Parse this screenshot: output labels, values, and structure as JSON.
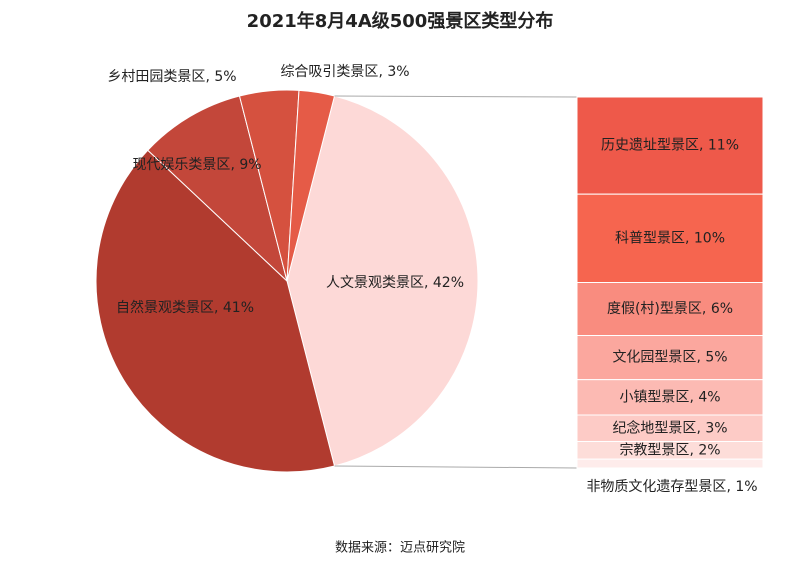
{
  "chart_data": {
    "type": "pie-of-bar",
    "title": "2021年8月4A级500强景区类型分布",
    "source": "数据来源：迈点研究院",
    "categories": [
      "人文景观类景区",
      "自然景观类景区",
      "现代娱乐类景区",
      "乡村田园类景区",
      "综合吸引类景区"
    ],
    "values": [
      42,
      41,
      9,
      5,
      3
    ],
    "value_labels": [
      "42%",
      "41%",
      "9%",
      "5%",
      "3%"
    ],
    "colors": [
      "#fdd9d7",
      "#b13b2f",
      "#c3473a",
      "#d5513f",
      "#e55b47"
    ],
    "breakdown": {
      "categories": [
        "历史遗址型景区",
        "科普型景区",
        "度假(村)型景区",
        "文化园型景区",
        "小镇型景区",
        "纪念地型景区",
        "宗教型景区",
        "非物质文化遗存型景区"
      ],
      "values": [
        11,
        10,
        6,
        5,
        4,
        3,
        2,
        1
      ],
      "value_labels": [
        "11%",
        "10%",
        "6%",
        "5%",
        "4%",
        "3%",
        "2%",
        "1%"
      ],
      "colors": [
        "#ee594a",
        "#f6654f",
        "#f98c7f",
        "#fba79e",
        "#fcbab3",
        "#fdcbc6",
        "#fdddd9",
        "#feeceb"
      ]
    }
  }
}
